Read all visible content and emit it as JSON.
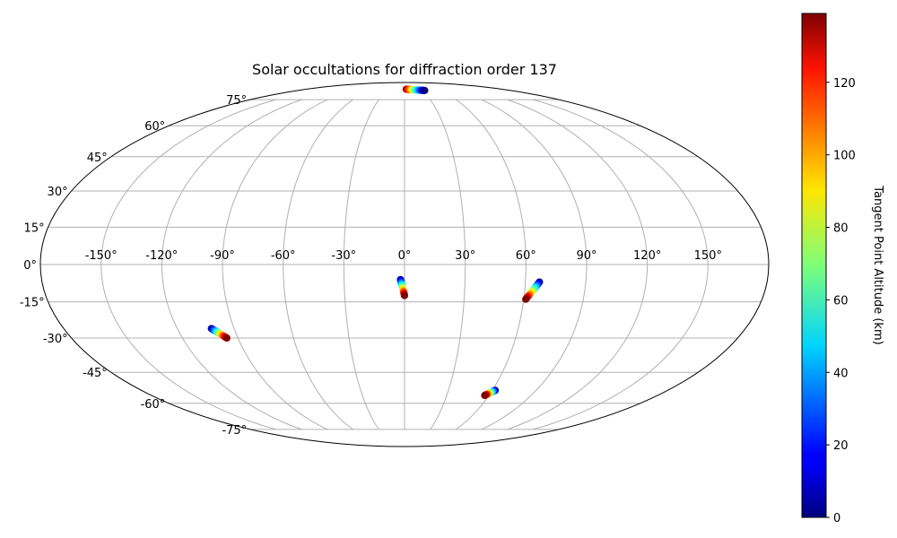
{
  "chart_data": {
    "type": "scatter",
    "projection": "mollweide",
    "title": "Solar occultations for diffraction order 137",
    "grid": true,
    "longitude_ticks": [
      "-150°",
      "-120°",
      "-90°",
      "-60°",
      "-30°",
      "0°",
      "30°",
      "60°",
      "90°",
      "120°",
      "150°"
    ],
    "latitude_ticks": [
      "75°",
      "60°",
      "45°",
      "30°",
      "15°",
      "0°",
      "-15°",
      "-30°",
      "-45°",
      "-60°",
      "-75°"
    ],
    "colorbar": {
      "label": "Tangent Point Altitude (km)",
      "colormap": "jet",
      "range": [
        0,
        139
      ],
      "ticks": [
        "0",
        "20",
        "40",
        "60",
        "80",
        "100",
        "120"
      ]
    },
    "tracks": [
      {
        "lon_start": 3,
        "lat_start": 82.5,
        "alt_start": 139,
        "lon_end": 34,
        "lat_end": 81.5,
        "alt_end": 0
      },
      {
        "lon_start": -2,
        "lat_start": -6,
        "alt_start": 0,
        "lon_end": 0,
        "lat_end": -12.5,
        "alt_end": 139
      },
      {
        "lon_start": 67,
        "lat_start": -7,
        "alt_start": 0,
        "lon_end": 61,
        "lat_end": -14,
        "alt_end": 139
      },
      {
        "lon_start": -102,
        "lat_start": -26,
        "alt_start": 0,
        "lon_end": -96,
        "lat_end": -30,
        "alt_end": 139
      },
      {
        "lon_start": 62,
        "lat_start": -53.5,
        "alt_start": 0,
        "lon_end": 57,
        "lat_end": -56,
        "alt_end": 139
      }
    ]
  }
}
